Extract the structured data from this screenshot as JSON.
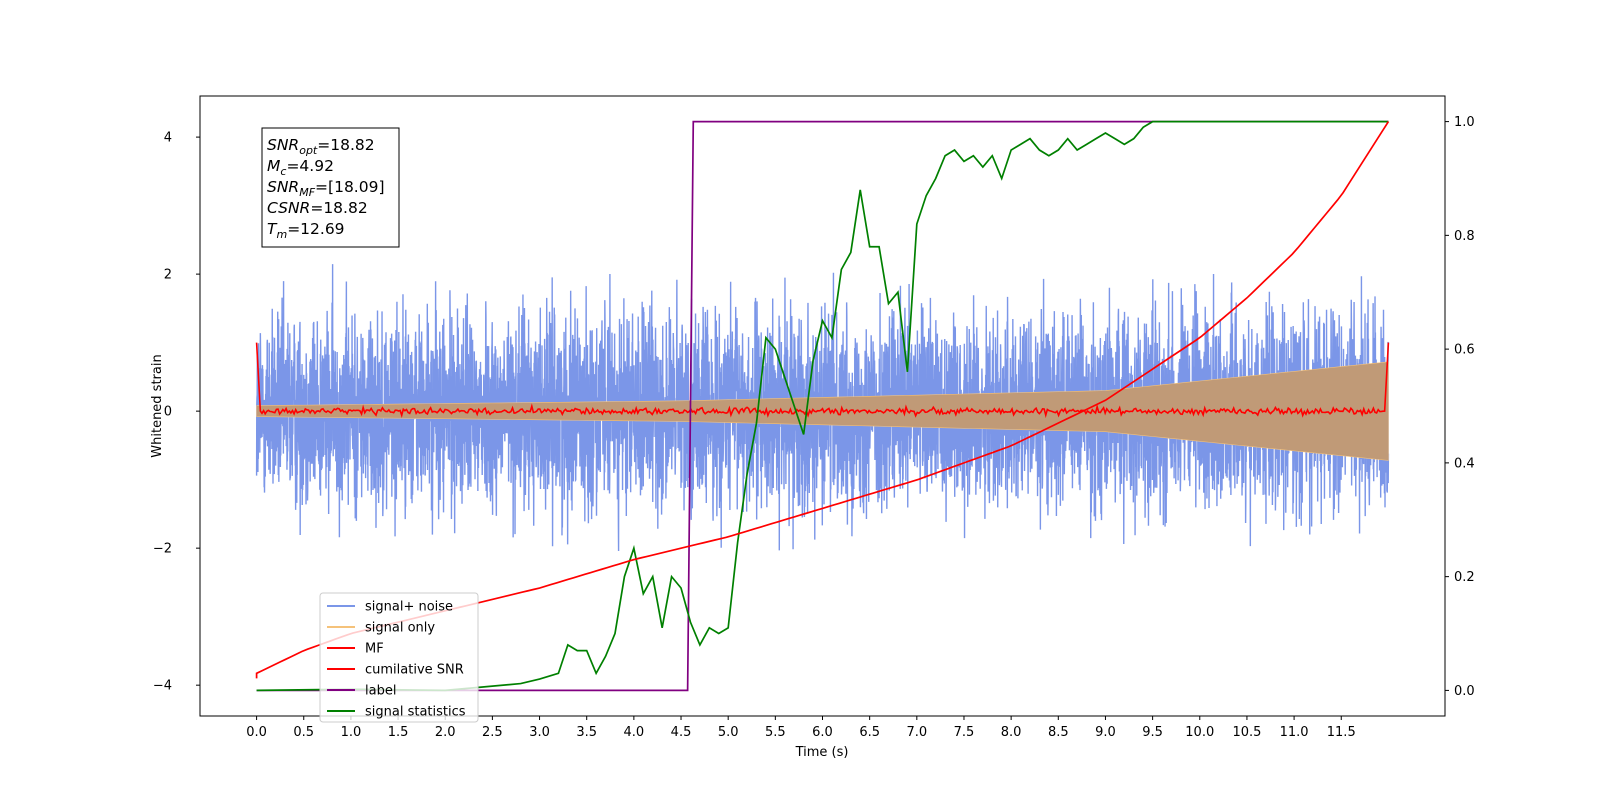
{
  "chart_data": {
    "type": "line",
    "title": "",
    "xlabel": "Time (s)",
    "ylabel": "Whitened strain",
    "xlim": [
      -0.6,
      12.6
    ],
    "ylim": [
      -4.45,
      4.6
    ],
    "y2lim": [
      -0.045,
      1.045
    ],
    "x_ticks": [
      "0.0",
      "0.5",
      "1.0",
      "1.5",
      "2.0",
      "2.5",
      "3.0",
      "3.5",
      "4.0",
      "4.5",
      "5.0",
      "5.5",
      "6.0",
      "6.5",
      "7.0",
      "7.5",
      "8.0",
      "8.5",
      "9.0",
      "9.5",
      "10.0",
      "10.5",
      "11.0",
      "11.5"
    ],
    "y_ticks": [
      "−4",
      "−2",
      "0",
      "2",
      "4"
    ],
    "y2_ticks": [
      "0.0",
      "0.2",
      "0.4",
      "0.6",
      "0.8",
      "1.0"
    ],
    "grid": false,
    "legend_position": "lower-left",
    "annotation": {
      "lines": [
        {
          "base": "SNR",
          "sub": "opt",
          "value": "=18.82"
        },
        {
          "base": "M",
          "sub": "c",
          "value": "=4.92"
        },
        {
          "base": "SNR",
          "sub": "MF",
          "value": "=[18.09]"
        },
        {
          "base": "CSNR",
          "sub": "",
          "value": "=18.82"
        },
        {
          "base": "T",
          "sub": "m",
          "value": "=12.69"
        }
      ]
    },
    "series": [
      {
        "name": "signal+ noise",
        "color": "#7b96e8",
        "axis": "left",
        "noise_std": 1.0,
        "x_range": [
          0.0,
          12.0
        ]
      },
      {
        "name": "signal only",
        "color": "#f5c27a",
        "axis": "left",
        "amplitude_envelope": {
          "x": [
            0.0,
            4.5,
            9.0,
            12.0
          ],
          "y": [
            0.08,
            0.15,
            0.3,
            0.72
          ]
        }
      },
      {
        "name": "MF",
        "color": "#ff0000",
        "axis": "left",
        "points": [
          {
            "x": 0.0,
            "y": 1.0
          },
          {
            "x": 0.04,
            "y": 0.0
          },
          {
            "x": 11.96,
            "y": 0.0
          },
          {
            "x": 12.0,
            "y": 1.0
          }
        ],
        "noise_std": 0.035
      },
      {
        "name": "cumilative SNR",
        "color": "#ff0000",
        "axis": "right",
        "x": [
          0.0,
          0.5,
          1.0,
          2.0,
          3.0,
          4.0,
          5.0,
          6.0,
          7.0,
          8.0,
          9.0,
          10.0,
          10.5,
          11.0,
          11.5,
          12.0
        ],
        "y": [
          0.03,
          0.07,
          0.1,
          0.14,
          0.18,
          0.23,
          0.27,
          0.32,
          0.37,
          0.43,
          0.51,
          0.62,
          0.69,
          0.77,
          0.87,
          1.0
        ]
      },
      {
        "name": "label",
        "color": "#800080",
        "axis": "right",
        "x": [
          0.0,
          4.57,
          4.63,
          12.0
        ],
        "y": [
          0.0,
          0.0,
          1.0,
          1.0
        ]
      },
      {
        "name": "signal statistics",
        "color": "#008000",
        "axis": "right",
        "x": [
          0.0,
          1.0,
          2.0,
          2.8,
          3.0,
          3.2,
          3.3,
          3.4,
          3.5,
          3.6,
          3.7,
          3.8,
          3.9,
          4.0,
          4.1,
          4.2,
          4.3,
          4.4,
          4.5,
          4.6,
          4.7,
          4.8,
          4.9,
          5.0,
          5.1,
          5.2,
          5.3,
          5.4,
          5.5,
          5.6,
          5.7,
          5.8,
          5.9,
          6.0,
          6.1,
          6.2,
          6.3,
          6.4,
          6.5,
          6.6,
          6.7,
          6.8,
          6.9,
          7.0,
          7.1,
          7.2,
          7.3,
          7.4,
          7.5,
          7.6,
          7.7,
          7.8,
          7.9,
          8.0,
          8.1,
          8.2,
          8.3,
          8.4,
          8.5,
          8.6,
          8.7,
          8.8,
          8.9,
          9.0,
          9.1,
          9.2,
          9.3,
          9.4,
          9.5,
          10.0,
          12.0
        ],
        "y": [
          0.0,
          0.002,
          0.0,
          0.012,
          0.02,
          0.03,
          0.08,
          0.07,
          0.07,
          0.03,
          0.06,
          0.1,
          0.2,
          0.25,
          0.17,
          0.2,
          0.11,
          0.2,
          0.18,
          0.12,
          0.08,
          0.11,
          0.1,
          0.11,
          0.26,
          0.38,
          0.47,
          0.62,
          0.6,
          0.55,
          0.5,
          0.45,
          0.58,
          0.65,
          0.62,
          0.74,
          0.77,
          0.88,
          0.78,
          0.78,
          0.68,
          0.7,
          0.56,
          0.82,
          0.87,
          0.9,
          0.94,
          0.95,
          0.93,
          0.94,
          0.92,
          0.94,
          0.9,
          0.95,
          0.96,
          0.97,
          0.95,
          0.94,
          0.95,
          0.97,
          0.95,
          0.96,
          0.97,
          0.98,
          0.97,
          0.96,
          0.97,
          0.99,
          1.0,
          1.0,
          1.0
        ]
      }
    ]
  }
}
